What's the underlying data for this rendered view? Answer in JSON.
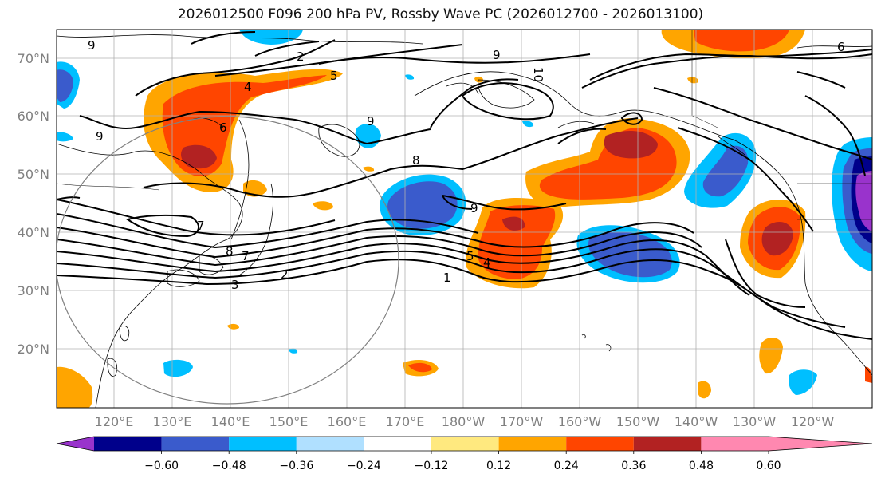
{
  "title": "2026012500 F096 200 hPa PV, Rossby Wave PC (2026012700 - 2026013100)",
  "lat_labels": [
    "70°N",
    "60°N",
    "50°N",
    "40°N",
    "30°N",
    "20°N"
  ],
  "lon_labels": [
    "120°E",
    "130°E",
    "140°E",
    "150°E",
    "160°E",
    "170°E",
    "180°W",
    "170°W",
    "160°W",
    "150°W",
    "140°W",
    "130°W",
    "120°W"
  ],
  "colorbar": {
    "colors": [
      "#9933cc",
      "#00008b",
      "#3a5bcc",
      "#00bfff",
      "#b0e0ff",
      "#ffffff",
      "#ffe97f",
      "#ffa500",
      "#ff4500",
      "#b22222",
      "#ff88b0"
    ],
    "tick_labels": [
      "−0.60",
      "−0.48",
      "−0.36",
      "−0.24",
      "−0.12",
      "0.12",
      "0.24",
      "0.36",
      "0.48",
      "0.60"
    ]
  },
  "contour_labels": [
    "1",
    "2",
    "3",
    "4",
    "4",
    "5",
    "6",
    "7",
    "7",
    "8",
    "8",
    "9",
    "9",
    "9",
    "9",
    "9",
    "10",
    "2",
    "5",
    "6"
  ]
}
